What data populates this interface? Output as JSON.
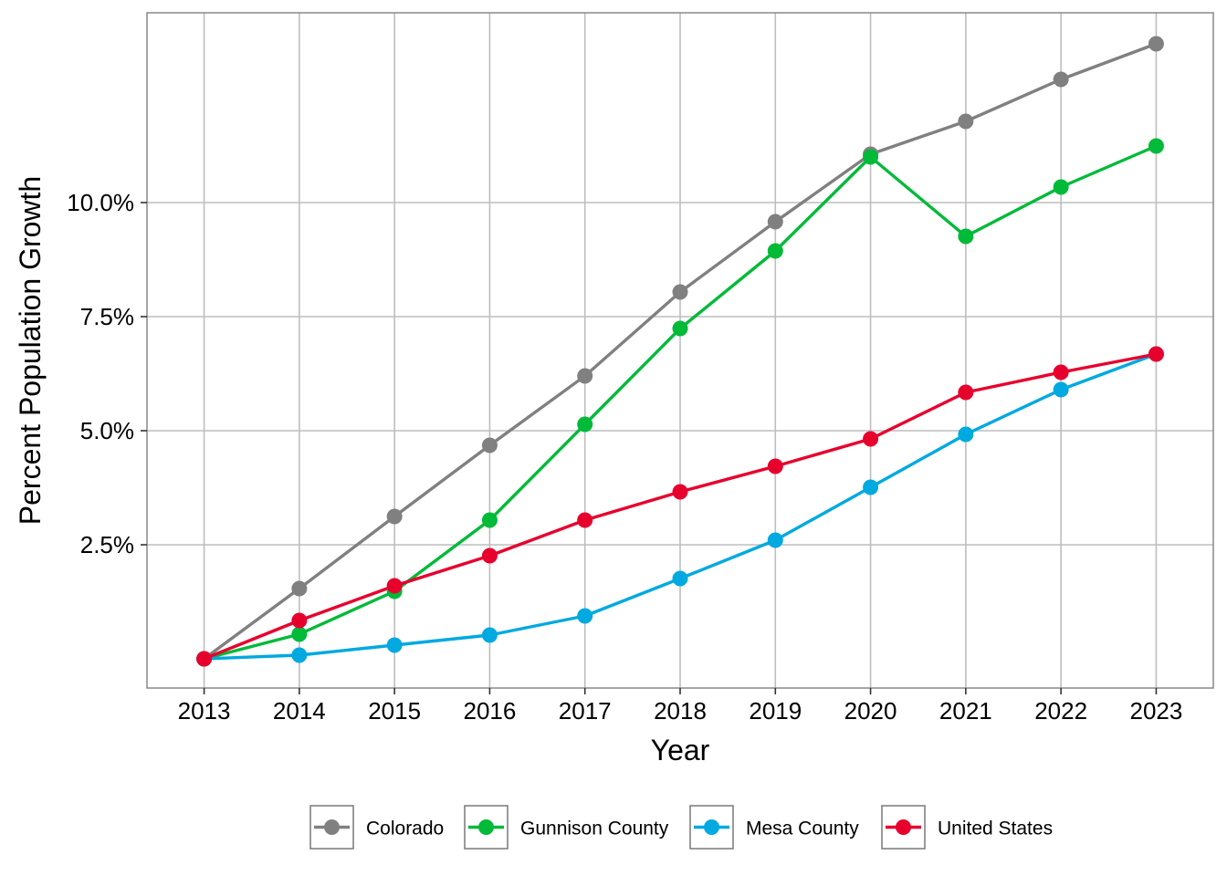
{
  "chart_data": {
    "type": "line",
    "title": "",
    "xlabel": "Year",
    "ylabel": "Percent Population Growth",
    "x": [
      2013,
      2014,
      2015,
      2016,
      2017,
      2018,
      2019,
      2020,
      2021,
      2022,
      2023
    ],
    "x_tick_labels": [
      "2013",
      "2014",
      "2015",
      "2016",
      "2017",
      "2018",
      "2019",
      "2020",
      "2021",
      "2022",
      "2023"
    ],
    "y_ticks": [
      2.5,
      5.0,
      7.5,
      10.0
    ],
    "y_tick_labels": [
      "2.5%",
      "5.0%",
      "7.5%",
      "10.0%"
    ],
    "xlim": [
      2012.4,
      2023.6
    ],
    "ylim": [
      -0.64,
      14.16
    ],
    "grid": true,
    "legend_position": "bottom",
    "series": [
      {
        "name": "Colorado",
        "color": "#808080",
        "values": [
          0,
          1.54,
          3.12,
          4.68,
          6.2,
          8.04,
          9.58,
          11.06,
          11.78,
          12.7,
          13.48
        ]
      },
      {
        "name": "Gunnison County",
        "color": "#00BA38",
        "values": [
          0,
          0.54,
          1.48,
          3.04,
          5.14,
          7.24,
          8.94,
          11.0,
          9.26,
          10.34,
          11.24
        ]
      },
      {
        "name": "Mesa County",
        "color": "#00A9E0",
        "values": [
          0,
          0.08,
          0.3,
          0.52,
          0.94,
          1.76,
          2.6,
          3.76,
          4.92,
          5.9,
          6.68
        ]
      },
      {
        "name": "United States",
        "color": "#E8002D",
        "values": [
          0,
          0.84,
          1.6,
          2.26,
          3.04,
          3.66,
          4.22,
          4.82,
          5.84,
          6.28,
          6.68
        ]
      }
    ]
  }
}
